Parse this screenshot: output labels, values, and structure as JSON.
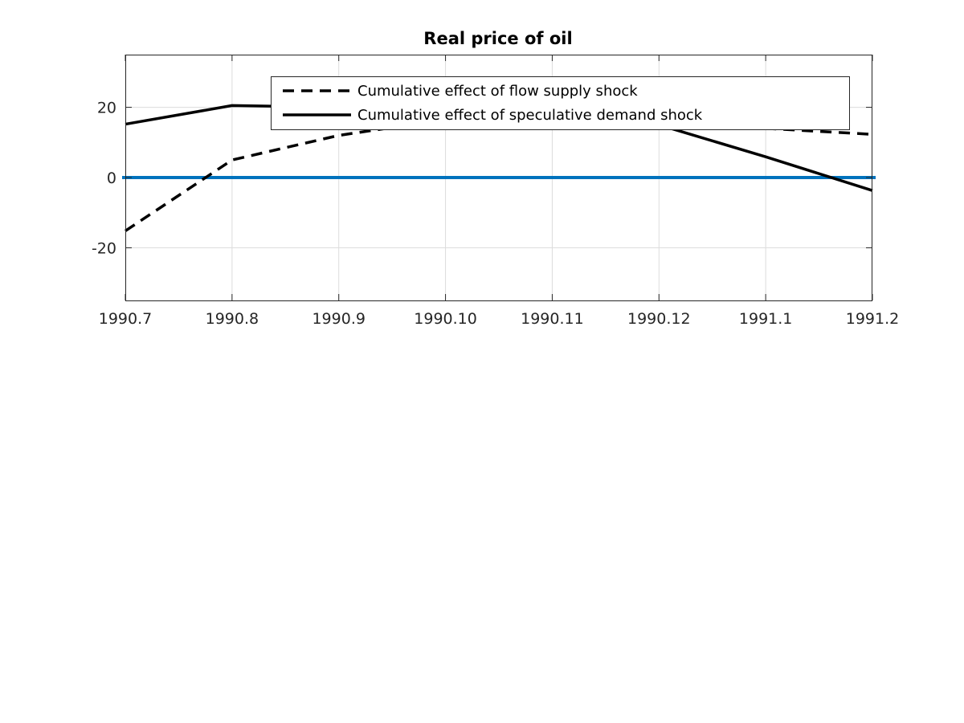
{
  "chart_data": {
    "type": "line",
    "title": "Real price of oil",
    "xlabel": "",
    "ylabel": "",
    "categories": [
      "1990.7",
      "1990.8",
      "1990.9",
      "1990.10",
      "1990.11",
      "1990.12",
      "1991.1",
      "1991.2"
    ],
    "yticks": [
      -20,
      0,
      20
    ],
    "ylim": [
      -35,
      35
    ],
    "grid": true,
    "legend": "top-right",
    "series": [
      {
        "name": "Cumulative effect of flow supply shock",
        "style": "dashed",
        "color": "#000000",
        "values": [
          -15.2,
          5.0,
          12.0,
          16.5,
          16.0,
          15.5,
          14.0,
          12.3
        ]
      },
      {
        "name": "Cumulative effect of speculative demand shock",
        "style": "solid",
        "color": "#000000",
        "values": [
          15.2,
          20.5,
          20.0,
          19.0,
          18.5,
          15.0,
          5.9,
          -3.7
        ]
      }
    ],
    "reference_line": {
      "value": 0,
      "color": "#0072BD"
    }
  }
}
